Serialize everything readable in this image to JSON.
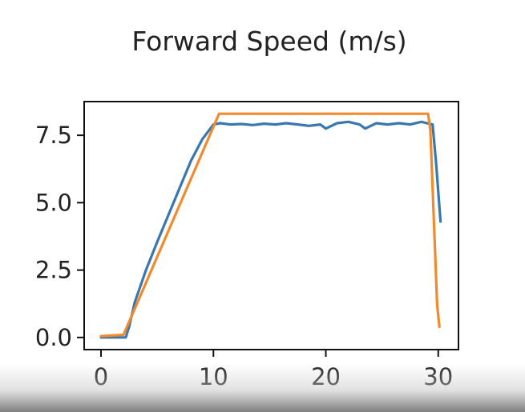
{
  "chart_data": {
    "type": "line",
    "title": "Forward Speed (m/s)",
    "xlabel": "",
    "ylabel": "",
    "xlim": [
      -1.5,
      31.8
    ],
    "ylim": [
      -0.45,
      8.75
    ],
    "xticks": [
      0,
      10,
      20,
      30
    ],
    "yticks": [
      0.0,
      2.5,
      5.0,
      7.5
    ],
    "xtick_labels": [
      "0",
      "10",
      "20",
      "30"
    ],
    "ytick_labels": [
      "0.0",
      "2.5",
      "5.0",
      "7.5"
    ],
    "grid": false,
    "legend": "none",
    "series": [
      {
        "color": "#3a77b0",
        "x": [
          0,
          2.2,
          2.5,
          3,
          4,
          5,
          6,
          7,
          8,
          9,
          10,
          10.6,
          11.5,
          12.5,
          13.5,
          14.5,
          15.5,
          16.5,
          17.5,
          18.5,
          19.5,
          20,
          21,
          22,
          23,
          23.5,
          24.5,
          25.5,
          26.5,
          27.5,
          28.5,
          29,
          29.5,
          29.8,
          30.2
        ],
        "y": [
          0.0,
          0.0,
          0.4,
          1.3,
          2.5,
          3.55,
          4.55,
          5.55,
          6.55,
          7.35,
          7.9,
          7.95,
          7.9,
          7.92,
          7.88,
          7.93,
          7.9,
          7.95,
          7.9,
          7.85,
          7.9,
          7.75,
          7.95,
          8.0,
          7.9,
          7.75,
          7.95,
          7.9,
          7.95,
          7.9,
          8.0,
          7.95,
          7.9,
          6.5,
          4.3
        ]
      },
      {
        "color": "#f08a2c",
        "x": [
          0,
          2.0,
          10.5,
          29.1,
          29.3,
          29.6,
          29.9,
          30.1
        ],
        "y": [
          0.05,
          0.1,
          8.3,
          8.3,
          7.7,
          4.5,
          1.2,
          0.4
        ]
      }
    ]
  }
}
